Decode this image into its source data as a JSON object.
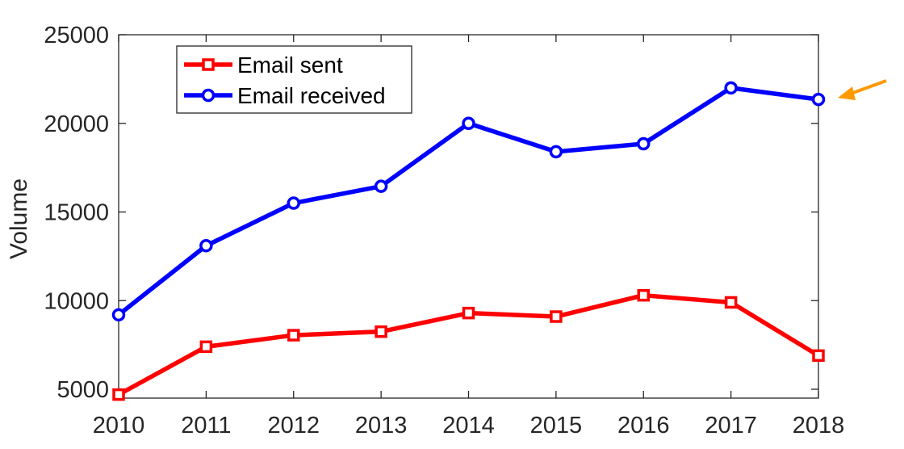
{
  "chart_data": {
    "type": "line",
    "title": "",
    "xlabel": "",
    "ylabel": "Volume",
    "x": [
      2010,
      2011,
      2012,
      2013,
      2014,
      2015,
      2016,
      2017,
      2018
    ],
    "xlim": [
      2010,
      2018
    ],
    "ylim": [
      4500,
      25000
    ],
    "yticks": [
      5000,
      10000,
      15000,
      20000,
      25000
    ],
    "grid": false,
    "legend_position": "top-left",
    "series": [
      {
        "name": "Email sent",
        "color": "#ff0000",
        "marker": "square",
        "values": [
          4700,
          7400,
          8050,
          8250,
          9300,
          9100,
          10300,
          9900,
          6900
        ]
      },
      {
        "name": "Email received",
        "color": "#0000ff",
        "marker": "circle",
        "values": [
          9200,
          13100,
          15500,
          16450,
          20000,
          18400,
          18850,
          22000,
          21350
        ]
      }
    ],
    "annotations": [
      {
        "type": "arrow",
        "color": "#ff9900",
        "points_to": {
          "x": 2018,
          "y": 21350
        }
      }
    ]
  }
}
